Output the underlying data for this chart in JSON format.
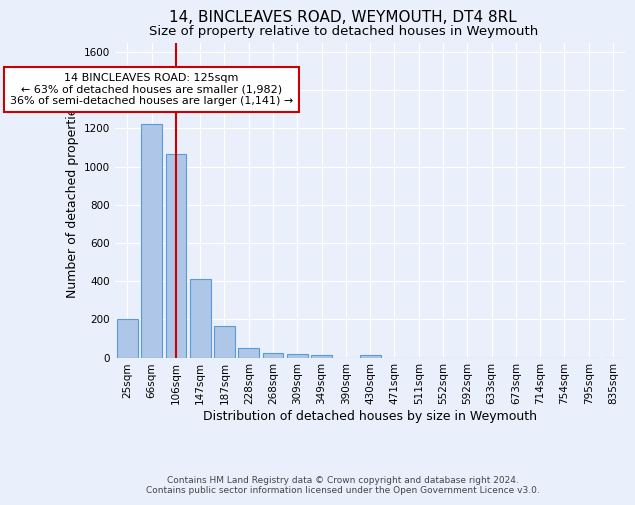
{
  "title": "14, BINCLEAVES ROAD, WEYMOUTH, DT4 8RL",
  "subtitle": "Size of property relative to detached houses in Weymouth",
  "xlabel": "Distribution of detached houses by size in Weymouth",
  "ylabel": "Number of detached properties",
  "footer_line1": "Contains HM Land Registry data © Crown copyright and database right 2024.",
  "footer_line2": "Contains public sector information licensed under the Open Government Licence v3.0.",
  "bar_labels": [
    "25sqm",
    "66sqm",
    "106sqm",
    "147sqm",
    "187sqm",
    "228sqm",
    "268sqm",
    "309sqm",
    "349sqm",
    "390sqm",
    "430sqm",
    "471sqm",
    "511sqm",
    "552sqm",
    "592sqm",
    "633sqm",
    "673sqm",
    "714sqm",
    "754sqm",
    "795sqm",
    "835sqm"
  ],
  "bar_values": [
    200,
    1225,
    1065,
    410,
    163,
    50,
    25,
    18,
    12,
    0,
    12,
    0,
    0,
    0,
    0,
    0,
    0,
    0,
    0,
    0,
    0
  ],
  "bar_color": "#aec6e8",
  "bar_edge_color": "#5b9bd5",
  "ylim": [
    0,
    1650
  ],
  "yticks": [
    0,
    200,
    400,
    600,
    800,
    1000,
    1200,
    1400,
    1600
  ],
  "property_bin_index": 2,
  "red_line_color": "#cc0000",
  "annotation_text": "14 BINCLEAVES ROAD: 125sqm\n← 63% of detached houses are smaller (1,982)\n36% of semi-detached houses are larger (1,141) →",
  "annotation_box_color": "#ffffff",
  "annotation_box_edge": "#cc0000",
  "background_color": "#eaf0fb",
  "grid_color": "#ffffff",
  "title_fontsize": 11,
  "subtitle_fontsize": 9.5,
  "axis_label_fontsize": 9,
  "tick_fontsize": 7.5,
  "annotation_fontsize": 8,
  "footer_fontsize": 6.5
}
